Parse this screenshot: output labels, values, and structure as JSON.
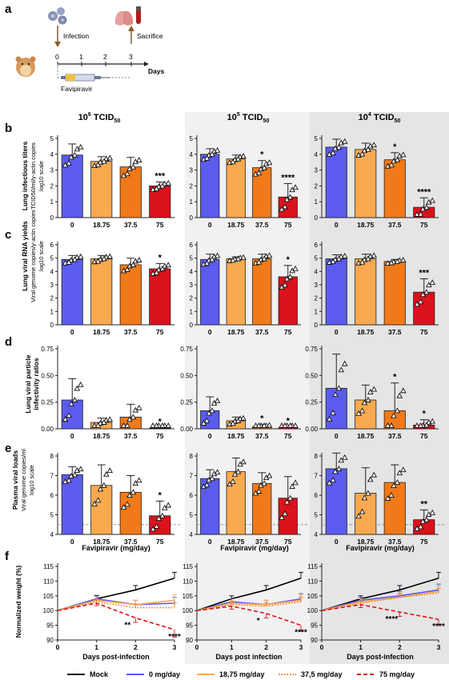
{
  "panel_letters": [
    "a",
    "b",
    "c",
    "d",
    "e",
    "f"
  ],
  "schematic": {
    "infection": "Infection",
    "sacrifice": "Sacrifice",
    "drug": "Favipiravir",
    "timeline_ticks": [
      "0",
      "1",
      "2",
      "3"
    ],
    "days_label": "Days"
  },
  "col_titles": [
    {
      "base": "10",
      "exp": "6",
      "suffix": " TCID",
      "sub": "50"
    },
    {
      "base": "10",
      "exp": "5",
      "suffix": " TCID",
      "sub": "50"
    },
    {
      "base": "10",
      "exp": "4",
      "suffix": " TCID",
      "sub": "50"
    }
  ],
  "row_b": {
    "ylabel1": "Lung infectious titers",
    "ylabel2": "TCID50/ml/γ-actin copies",
    "ylabel3": "log10 scale"
  },
  "row_c": {
    "ylabel1": "Lung viral RNA yields",
    "ylabel2": "Viral genome copies/γ-actin copies",
    "ylabel3": "log10 scale"
  },
  "row_d": {
    "ylabel1": "Lung viral particle",
    "ylabel2": "infectivity ratios"
  },
  "row_e": {
    "ylabel1": "Plasma viral loads",
    "ylabel2": "Viral genome copies/ml",
    "ylabel3": "log10 scale"
  },
  "row_f": {
    "ylabel": "Normalized weight (%)"
  },
  "dose_categories": [
    "0",
    "18.75",
    "37.5",
    "75"
  ],
  "xlabel_doses": "Favipiravir (mg/day)",
  "xlabel_days": [
    "Days post-infection",
    "Days post infection",
    "Days post-infection"
  ],
  "bar_colors": [
    "#5b5bf0",
    "#f9a94f",
    "#f07a1a",
    "#d9131b"
  ],
  "legend": [
    {
      "label": "Mock",
      "color": "#000000",
      "dash": "solid"
    },
    {
      "label": "0 mg/day",
      "color": "#5b5bf0",
      "dash": "solid"
    },
    {
      "label": "18,75 mg/day",
      "color": "#f9a94f",
      "dash": "solid"
    },
    {
      "label": "37,5 mg/day",
      "color": "#f07a1a",
      "dash": "dotted"
    },
    {
      "label": "75 mg/day",
      "color": "#d9131b",
      "dash": "dashed"
    }
  ],
  "chart_data": [
    {
      "type": "bar",
      "panel": "b",
      "ylim": [
        0,
        5
      ],
      "yticks": [
        "0",
        "1",
        "2",
        "3",
        "4",
        "5"
      ],
      "columns": [
        {
          "values": [
            3.95,
            3.55,
            3.2,
            2.0
          ],
          "errors": [
            0.7,
            0.3,
            0.6,
            0.25
          ],
          "stars": [
            "",
            "",
            "",
            "***"
          ]
        },
        {
          "values": [
            4.0,
            3.7,
            3.15,
            1.3
          ],
          "errors": [
            0.35,
            0.25,
            0.45,
            0.85
          ],
          "stars": [
            "",
            "",
            "*",
            "****"
          ]
        },
        {
          "values": [
            4.45,
            4.3,
            3.65,
            0.65
          ],
          "errors": [
            0.5,
            0.4,
            0.45,
            0.6
          ],
          "stars": [
            "",
            "",
            "*",
            "****"
          ]
        }
      ]
    },
    {
      "type": "bar",
      "panel": "c",
      "ylim": [
        0,
        6
      ],
      "yticks": [
        "0",
        "1",
        "2",
        "3",
        "4",
        "5",
        "6"
      ],
      "columns": [
        {
          "values": [
            4.9,
            4.95,
            4.5,
            4.2
          ],
          "errors": [
            0.3,
            0.25,
            0.5,
            0.4
          ],
          "stars": [
            "",
            "",
            "",
            "*"
          ]
        },
        {
          "values": [
            4.9,
            4.95,
            4.95,
            3.6
          ],
          "errors": [
            0.4,
            0.15,
            0.35,
            0.85
          ],
          "stars": [
            "",
            "",
            "",
            "*"
          ]
        },
        {
          "values": [
            4.95,
            4.95,
            4.75,
            2.45
          ],
          "errors": [
            0.3,
            0.35,
            0.15,
            1.0
          ],
          "stars": [
            "",
            "",
            "",
            "***"
          ]
        }
      ]
    },
    {
      "type": "bar",
      "panel": "d",
      "ylim": [
        0,
        0.75
      ],
      "yticks": [
        "0.00",
        "0.25",
        "0.50",
        "0.75"
      ],
      "columns": [
        {
          "values": [
            0.27,
            0.06,
            0.11,
            0.005
          ],
          "errors": [
            0.2,
            0.04,
            0.12,
            0.005
          ],
          "stars": [
            "",
            "",
            "",
            "*"
          ]
        },
        {
          "values": [
            0.17,
            0.075,
            0.02,
            0.01
          ],
          "errors": [
            0.13,
            0.035,
            0.02,
            0.01
          ],
          "stars": [
            "",
            "",
            "*",
            "*"
          ]
        },
        {
          "values": [
            0.38,
            0.27,
            0.17,
            0.035
          ],
          "errors": [
            0.32,
            0.14,
            0.26,
            0.05
          ],
          "stars": [
            "",
            "",
            "*",
            "*"
          ]
        }
      ]
    },
    {
      "type": "bar",
      "panel": "e",
      "ylim": [
        4,
        8
      ],
      "yticks": [
        "4",
        "5",
        "6",
        "7",
        "8"
      ],
      "dashed_line": 4.5,
      "columns": [
        {
          "values": [
            7.05,
            6.5,
            6.15,
            4.95
          ],
          "errors": [
            0.4,
            1.05,
            0.85,
            0.75
          ],
          "stars": [
            "",
            "",
            "",
            "*"
          ]
        },
        {
          "values": [
            6.85,
            7.2,
            6.6,
            5.85
          ],
          "errors": [
            0.45,
            0.7,
            0.55,
            1.1
          ],
          "stars": [
            "",
            "",
            "",
            ""
          ]
        },
        {
          "values": [
            7.35,
            6.1,
            6.65,
            4.75
          ],
          "errors": [
            0.8,
            1.3,
            0.9,
            0.5
          ],
          "stars": [
            "",
            "",
            "",
            "**"
          ]
        }
      ]
    },
    {
      "type": "line",
      "panel": "f",
      "ylim": [
        90,
        115
      ],
      "yticks": [
        "90",
        "95",
        "100",
        "105",
        "110",
        "115"
      ],
      "x": [
        0,
        1,
        2,
        3
      ],
      "xticks": [
        "0",
        "1",
        "2",
        "3"
      ],
      "columns": [
        {
          "series": [
            {
              "name": "Mock",
              "values": [
                100,
                104,
                107,
                111
              ],
              "errors": [
                0,
                1,
                1.5,
                2
              ]
            },
            {
              "name": "0 mg/day",
              "values": [
                100,
                104,
                102,
                102.5
              ],
              "errors": [
                0,
                1.2,
                1.5,
                2
              ]
            },
            {
              "name": "18,75 mg/day",
              "values": [
                100,
                103.5,
                102,
                103.5
              ],
              "errors": [
                0,
                1,
                1.5,
                1.8
              ]
            },
            {
              "name": "37,5 mg/day",
              "values": [
                100,
                103,
                101,
                101
              ],
              "errors": [
                0,
                0.8,
                1.2,
                1.5
              ]
            },
            {
              "name": "75 mg/day",
              "values": [
                100,
                102.5,
                97.5,
                93.5
              ],
              "errors": [
                0,
                0.8,
                1.5,
                2.5
              ]
            }
          ],
          "stars": [
            {
              "x": 2,
              "text": "**"
            },
            {
              "x": 3,
              "text": "****"
            }
          ]
        },
        {
          "series": [
            {
              "name": "Mock",
              "values": [
                100,
                104,
                107,
                111
              ],
              "errors": [
                0,
                1,
                1.5,
                2
              ]
            },
            {
              "name": "0 mg/day",
              "values": [
                100,
                103,
                102,
                104
              ],
              "errors": [
                0,
                1,
                1.5,
                1.8
              ]
            },
            {
              "name": "18,75 mg/day",
              "values": [
                100,
                102.5,
                102,
                103.5
              ],
              "errors": [
                0,
                1,
                1.5,
                1.8
              ]
            },
            {
              "name": "37,5 mg/day",
              "values": [
                100,
                102,
                101.5,
                103
              ],
              "errors": [
                0,
                0.8,
                1.2,
                1.5
              ]
            },
            {
              "name": "75 mg/day",
              "values": [
                100,
                101.5,
                99,
                95
              ],
              "errors": [
                0,
                1,
                1.5,
                2
              ]
            }
          ],
          "stars": [
            {
              "x": 2,
              "text": "*"
            },
            {
              "x": 3,
              "text": "****"
            }
          ]
        },
        {
          "series": [
            {
              "name": "Mock",
              "values": [
                100,
                104,
                107,
                111
              ],
              "errors": [
                0,
                1,
                1.5,
                2
              ]
            },
            {
              "name": "0 mg/day",
              "values": [
                100,
                103.5,
                105,
                107
              ],
              "errors": [
                0,
                1,
                1.5,
                2
              ]
            },
            {
              "name": "18,75 mg/day",
              "values": [
                100,
                103,
                104.5,
                106.5
              ],
              "errors": [
                0,
                1,
                1.5,
                1.8
              ]
            },
            {
              "name": "37,5 mg/day",
              "values": [
                100,
                102.5,
                104.5,
                106
              ],
              "errors": [
                0,
                0.8,
                1.2,
                1.5
              ]
            },
            {
              "name": "75 mg/day",
              "values": [
                100,
                102,
                99.5,
                97
              ],
              "errors": [
                0,
                1,
                1.5,
                2
              ]
            }
          ],
          "stars": [
            {
              "x": 2,
              "text": "****"
            },
            {
              "x": 3,
              "text": "****"
            }
          ]
        }
      ]
    }
  ]
}
